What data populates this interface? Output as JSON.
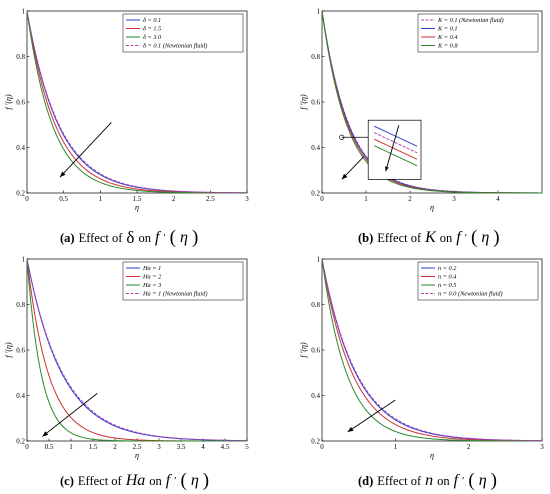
{
  "chart_data": [
    {
      "type": "line",
      "caption": {
        "tag": "(a)",
        "text": "Effect of",
        "param": "δ",
        "on": "on",
        "fn": "f",
        "arg": "η"
      },
      "xlabel": "η",
      "ylabel": "f '(η)",
      "xlim": [
        0,
        3
      ],
      "ylim": [
        0.2,
        1
      ],
      "xticks": [
        "0",
        "0.5",
        "1",
        "1.5",
        "2",
        "2.5",
        "3"
      ],
      "yticks": [
        "0.2",
        "0.4",
        "0.6",
        "0.8",
        "1"
      ],
      "legend": "top-right",
      "series": [
        {
          "name": "δ = 0.1",
          "color": "#2f3fd0",
          "dash": false,
          "decay": 2.3
        },
        {
          "name": "δ = 1.5",
          "color": "#d03030",
          "dash": false,
          "decay": 2.55
        },
        {
          "name": "δ = 3.0",
          "color": "#2a8a2a",
          "dash": false,
          "decay": 2.85
        },
        {
          "name": "δ = 0.1 (Newtonian fluid)",
          "color": "#b040b0",
          "dash": true,
          "decay": 2.25
        }
      ],
      "arrow": {
        "from": [
          1.15,
          0.51
        ],
        "to": [
          0.45,
          0.27
        ]
      },
      "inset": null
    },
    {
      "type": "line",
      "caption": {
        "tag": "(b)",
        "text": "Effect of",
        "param": "K",
        "on": "on",
        "fn": "f",
        "arg": "η"
      },
      "xlabel": "η",
      "ylabel": "f '(η)",
      "xlim": [
        0,
        5
      ],
      "ylim": [
        0.2,
        1
      ],
      "xticks": [
        "0",
        "1",
        "2",
        "3",
        "4"
      ],
      "yticks": [
        "0.2",
        "0.4",
        "0.6",
        "0.8",
        "1"
      ],
      "legend": "top-right",
      "series": [
        {
          "name": "K = 0.1 (Newtonian fluid)",
          "color": "#b040b0",
          "dash": true,
          "decay": 1.6
        },
        {
          "name": "K = 0.1",
          "color": "#2f3fd0",
          "dash": false,
          "decay": 1.62
        },
        {
          "name": "K = 0.4",
          "color": "#d03030",
          "dash": false,
          "decay": 1.68
        },
        {
          "name": "K = 0.8",
          "color": "#2a8a2a",
          "dash": false,
          "decay": 1.75
        }
      ],
      "arrow": {
        "from": [
          0.95,
          0.36
        ],
        "to": [
          0.45,
          0.26
        ]
      },
      "inset": {
        "center": [
          0.45,
          0.445
        ],
        "x": 1.05,
        "y": 0.52,
        "w": 1.2,
        "h": 0.26
      }
    },
    {
      "type": "line",
      "caption": {
        "tag": "(c)",
        "text": "Effect of",
        "param": "Ha",
        "on": "on",
        "fn": "f",
        "arg": "η"
      },
      "xlabel": "η",
      "ylabel": "f '(η)",
      "xlim": [
        0,
        5
      ],
      "ylim": [
        0.2,
        1
      ],
      "xticks": [
        "0",
        "0.5",
        "1",
        "1.5",
        "2",
        "2.5",
        "3",
        "3.5",
        "4",
        "4.5",
        "5"
      ],
      "yticks": [
        "0.2",
        "0.4",
        "0.6",
        "0.8",
        "1"
      ],
      "legend": "top-right",
      "series": [
        {
          "name": "Ha = 1",
          "color": "#2f3fd0",
          "dash": false,
          "decay": 1.25
        },
        {
          "name": "Ha = 2",
          "color": "#d03030",
          "dash": false,
          "decay": 2.05
        },
        {
          "name": "Ha = 3",
          "color": "#2a8a2a",
          "dash": false,
          "decay": 3.1
        },
        {
          "name": "Ha = 1 (Newtonian fluid)",
          "color": "#b040b0",
          "dash": true,
          "decay": 1.22
        }
      ],
      "arrow": {
        "from": [
          1.6,
          0.41
        ],
        "to": [
          0.35,
          0.22
        ]
      },
      "inset": null
    },
    {
      "type": "line",
      "caption": {
        "tag": "(d)",
        "text": "Effect of",
        "param": "n",
        "on": "on",
        "fn": "f",
        "arg": "η"
      },
      "xlabel": "η",
      "ylabel": "f '(η)",
      "xlim": [
        0,
        3
      ],
      "ylim": [
        0.2,
        1
      ],
      "xticks": [
        "0",
        "1",
        "2",
        "3"
      ],
      "yticks": [
        "0.2",
        "0.4",
        "0.6",
        "0.8",
        "1"
      ],
      "legend": "top-right",
      "series": [
        {
          "name": "n = 0.2",
          "color": "#2f3fd0",
          "dash": false,
          "decay": 2.15
        },
        {
          "name": "n = 0.4",
          "color": "#d03030",
          "dash": false,
          "decay": 2.4
        },
        {
          "name": "n = 0.5",
          "color": "#2a8a2a",
          "dash": false,
          "decay": 2.95
        },
        {
          "name": "n = 0.0 (Newtonian fluid)",
          "color": "#b040b0",
          "dash": true,
          "decay": 2.1
        }
      ],
      "arrow": {
        "from": [
          1.0,
          0.38
        ],
        "to": [
          0.35,
          0.24
        ]
      },
      "inset": null
    }
  ]
}
